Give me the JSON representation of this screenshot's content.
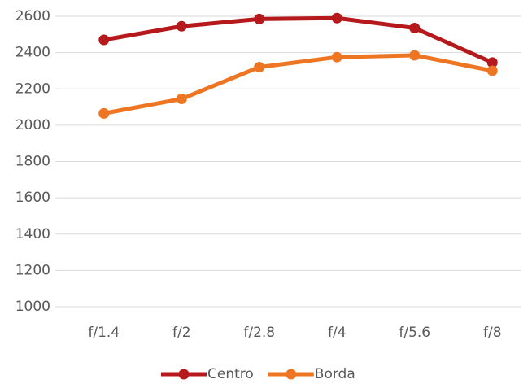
{
  "chart_data": {
    "type": "line",
    "categories": [
      "f/1.4",
      "f/2",
      "f/2.8",
      "f/4",
      "f/5.6",
      "f/8"
    ],
    "series": [
      {
        "name": "Centro",
        "color": "#b5191b",
        "values": [
          2470,
          2545,
          2585,
          2590,
          2535,
          2345
        ]
      },
      {
        "name": "Borda",
        "color": "#ee7522",
        "values": [
          2065,
          2145,
          2320,
          2375,
          2385,
          2300
        ]
      }
    ],
    "ylim": [
      1000,
      2600
    ],
    "yticks": [
      1000,
      1200,
      1400,
      1600,
      1800,
      2000,
      2200,
      2400,
      2600
    ],
    "grid": true,
    "legend": "bottom"
  }
}
